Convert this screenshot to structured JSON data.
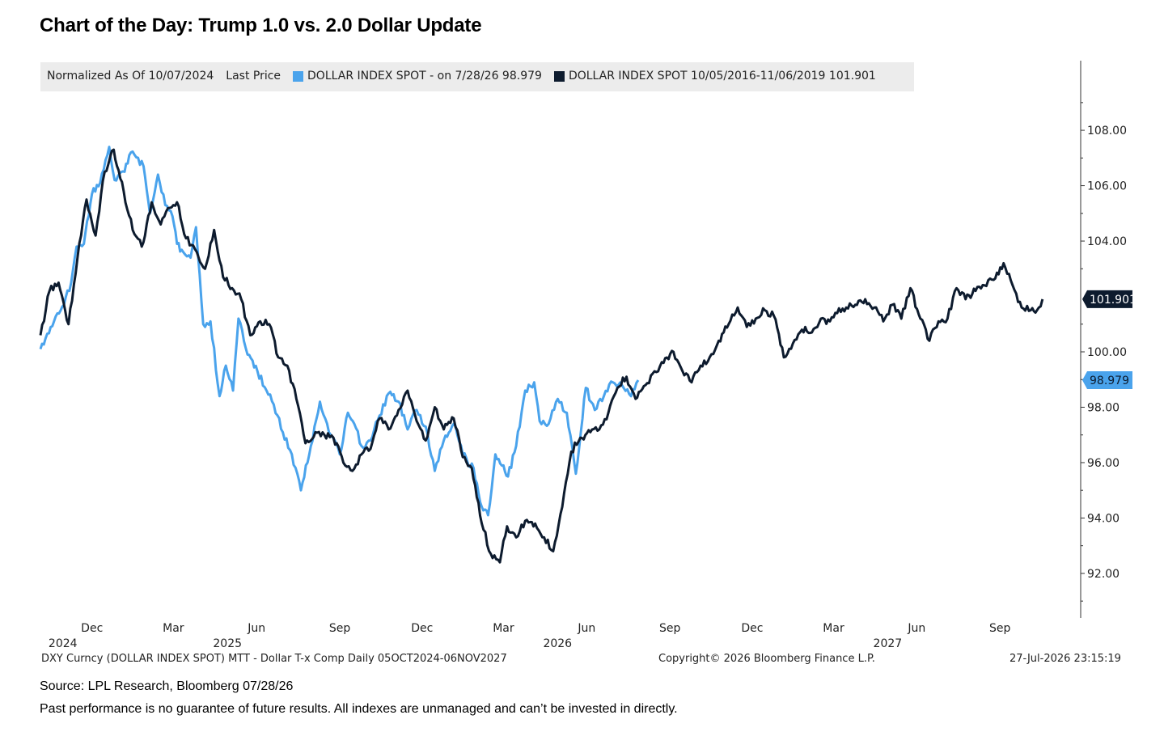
{
  "title": "Chart of the Day: Trump 1.0 vs. 2.0 Dollar Update",
  "legend": {
    "normalized": "Normalized As Of 10/07/2024",
    "last_price": "Last Price",
    "series1": "DOLLAR INDEX SPOT -  on 7/28/26 98.979",
    "series2": "DOLLAR INDEX SPOT 10/05/2016-11/06/2019 101.901"
  },
  "ticker_line": "DXY Curncy (DOLLAR INDEX SPOT) MTT - Dollar T-x Comp Daily 05OCT2024-06NOV2027",
  "copyright": "Copyright© 2026 Bloomberg Finance L.P.",
  "timestamp": "27-Jul-2026 23:15:19",
  "source": "Source: LPL Research, Bloomberg 07/28/26",
  "disclaimer": "Past performance is no guarantee of future results. All indexes are unmanaged and can’t be invested in directly.",
  "colors": {
    "series1": "#4aa3ec",
    "series2": "#0d1b2e",
    "axis": "#333333"
  },
  "chart_data": {
    "type": "line",
    "ylim": [
      90.8,
      109.2
    ],
    "y_ticks": [
      "108.00",
      "106.00",
      "104.00",
      "100.00",
      "98.00",
      "96.00",
      "94.00",
      "92.00"
    ],
    "x_start": "2024-10-05",
    "x_end": "2027-11-06",
    "x_ticks": [
      {
        "month": "Dec",
        "year": "2024",
        "date": "2024-12-01"
      },
      {
        "month": "Mar",
        "year": "",
        "date": "2025-03-01"
      },
      {
        "month": "Jun",
        "year": "2025",
        "date": "2025-06-01"
      },
      {
        "month": "Sep",
        "year": "",
        "date": "2025-09-01"
      },
      {
        "month": "Dec",
        "year": "",
        "date": "2025-12-01"
      },
      {
        "month": "Mar",
        "year": "",
        "date": "2026-03-01"
      },
      {
        "month": "Jun",
        "year": "2026",
        "date": "2026-06-01"
      },
      {
        "month": "Sep",
        "year": "",
        "date": "2026-09-01"
      },
      {
        "month": "Dec",
        "year": "",
        "date": "2026-12-01"
      },
      {
        "month": "Mar",
        "year": "",
        "date": "2027-03-01"
      },
      {
        "month": "Jun",
        "year": "2027",
        "date": "2027-06-01"
      },
      {
        "month": "Sep",
        "year": "",
        "date": "2027-09-01"
      }
    ],
    "series": [
      {
        "name": "DOLLAR INDEX SPOT -  on 7/28/26 98.979",
        "last_label": "98.979",
        "x": [
          "2024-10-05",
          "2024-10-20",
          "2024-10-31",
          "2024-11-08",
          "2024-11-14",
          "2024-11-22",
          "2024-12-01",
          "2024-12-10",
          "2024-12-20",
          "2024-12-26",
          "2025-01-06",
          "2025-01-13",
          "2025-01-27",
          "2025-02-03",
          "2025-02-12",
          "2025-02-20",
          "2025-02-28",
          "2025-03-05",
          "2025-03-12",
          "2025-03-20",
          "2025-03-26",
          "2025-04-03",
          "2025-04-11",
          "2025-04-21",
          "2025-04-28",
          "2025-05-06",
          "2025-05-12",
          "2025-05-22",
          "2025-06-02",
          "2025-06-12",
          "2025-06-20",
          "2025-06-30",
          "2025-07-10",
          "2025-07-20",
          "2025-07-31",
          "2025-08-10",
          "2025-08-20",
          "2025-09-01",
          "2025-09-10",
          "2025-09-17",
          "2025-09-25",
          "2025-10-05",
          "2025-10-15",
          "2025-10-25",
          "2025-11-05",
          "2025-11-15",
          "2025-11-25",
          "2025-12-05",
          "2025-12-15",
          "2025-12-25",
          "2026-01-05",
          "2026-01-15",
          "2026-01-27",
          "2026-02-05",
          "2026-02-12",
          "2026-02-20",
          "2026-03-01",
          "2026-03-06",
          "2026-03-15",
          "2026-03-25",
          "2026-04-04",
          "2026-04-10",
          "2026-04-20",
          "2026-04-30",
          "2026-05-10",
          "2026-05-20",
          "2026-05-31",
          "2026-06-10",
          "2026-06-20",
          "2026-06-30",
          "2026-07-10",
          "2026-07-20",
          "2026-07-28"
        ],
        "values": [
          100.1,
          101.1,
          101.7,
          102.5,
          103.8,
          103.9,
          105.7,
          106.1,
          107.4,
          106.2,
          106.5,
          107.2,
          106.7,
          105.0,
          106.4,
          105.3,
          104.9,
          103.9,
          103.6,
          103.4,
          104.5,
          101.0,
          101.1,
          98.4,
          99.5,
          98.6,
          101.2,
          99.9,
          99.3,
          98.6,
          98.1,
          97.1,
          96.3,
          95.0,
          96.6,
          98.2,
          97.1,
          96.3,
          97.8,
          97.4,
          96.6,
          96.8,
          97.7,
          98.5,
          98.2,
          97.2,
          97.9,
          97.3,
          95.7,
          96.8,
          97.4,
          96.3,
          95.8,
          94.4,
          94.1,
          96.3,
          95.9,
          95.5,
          96.6,
          98.6,
          98.9,
          97.5,
          97.4,
          98.3,
          97.8,
          95.6,
          98.7,
          97.9,
          98.4,
          98.9,
          98.8,
          98.4,
          98.979
        ]
      },
      {
        "name": "DOLLAR INDEX SPOT 10/05/2016-11/06/2019 101.901",
        "last_label": "101.901",
        "x": [
          "2024-10-05",
          "2024-10-15",
          "2024-10-25",
          "2024-11-05",
          "2024-11-15",
          "2024-11-25",
          "2024-12-05",
          "2024-12-15",
          "2024-12-25",
          "2025-01-05",
          "2025-01-15",
          "2025-01-25",
          "2025-02-05",
          "2025-02-15",
          "2025-02-25",
          "2025-03-05",
          "2025-03-15",
          "2025-03-25",
          "2025-04-05",
          "2025-04-15",
          "2025-04-25",
          "2025-05-05",
          "2025-05-15",
          "2025-05-25",
          "2025-06-05",
          "2025-06-15",
          "2025-06-25",
          "2025-07-05",
          "2025-07-15",
          "2025-07-25",
          "2025-08-05",
          "2025-08-15",
          "2025-08-25",
          "2025-09-05",
          "2025-09-15",
          "2025-09-25",
          "2025-10-05",
          "2025-10-15",
          "2025-10-25",
          "2025-11-05",
          "2025-11-15",
          "2025-11-25",
          "2025-12-05",
          "2025-12-15",
          "2025-12-25",
          "2026-01-05",
          "2026-01-15",
          "2026-01-25",
          "2026-02-05",
          "2026-02-15",
          "2026-02-25",
          "2026-03-05",
          "2026-03-15",
          "2026-03-25",
          "2026-04-05",
          "2026-04-15",
          "2026-04-25",
          "2026-05-05",
          "2026-05-15",
          "2026-05-25",
          "2026-06-05",
          "2026-06-15",
          "2026-06-25",
          "2026-07-05",
          "2026-07-15",
          "2026-07-25",
          "2026-08-05",
          "2026-08-15",
          "2026-08-25",
          "2026-09-05",
          "2026-09-15",
          "2026-09-25",
          "2026-10-05",
          "2026-10-15",
          "2026-10-25",
          "2026-11-05",
          "2026-11-15",
          "2026-11-25",
          "2026-12-05",
          "2026-12-15",
          "2026-12-25",
          "2027-01-05",
          "2027-01-15",
          "2027-01-25",
          "2027-02-05",
          "2027-02-15",
          "2027-02-25",
          "2027-03-05",
          "2027-03-15",
          "2027-03-25",
          "2027-04-05",
          "2027-04-15",
          "2027-04-25",
          "2027-05-05",
          "2027-05-15",
          "2027-05-25",
          "2027-06-05",
          "2027-06-15",
          "2027-06-25",
          "2027-07-05",
          "2027-07-15",
          "2027-07-25",
          "2027-08-05",
          "2027-08-15",
          "2027-08-25",
          "2027-09-05",
          "2027-09-15",
          "2027-09-25",
          "2027-10-05",
          "2027-10-12",
          "2027-10-18"
        ],
        "values": [
          100.6,
          102.2,
          102.5,
          101.0,
          103.4,
          105.5,
          104.2,
          106.5,
          107.3,
          105.8,
          104.4,
          103.8,
          105.4,
          104.6,
          105.2,
          105.4,
          104.1,
          103.7,
          103.0,
          104.4,
          102.7,
          102.3,
          101.9,
          100.6,
          101.1,
          101.0,
          99.8,
          99.5,
          98.3,
          96.7,
          97.1,
          97.0,
          96.9,
          96.0,
          95.7,
          96.3,
          96.5,
          97.6,
          97.2,
          97.9,
          98.6,
          97.5,
          96.8,
          98.0,
          97.2,
          97.6,
          96.2,
          95.8,
          93.8,
          92.7,
          92.4,
          93.7,
          93.3,
          93.9,
          93.8,
          93.3,
          92.8,
          94.4,
          96.4,
          96.9,
          97.1,
          97.2,
          97.8,
          98.7,
          99.1,
          98.3,
          98.8,
          99.3,
          99.6,
          100.0,
          99.3,
          98.9,
          99.5,
          99.8,
          100.4,
          101.0,
          101.6,
          100.9,
          101.2,
          101.5,
          101.3,
          99.8,
          100.3,
          100.8,
          100.7,
          101.2,
          101.1,
          101.4,
          101.6,
          101.7,
          101.9,
          101.6,
          101.1,
          101.7,
          101.2,
          102.3,
          101.2,
          100.4,
          101.1,
          101.2,
          102.3,
          101.9,
          102.2,
          102.4,
          102.6,
          103.2,
          102.4,
          101.6,
          101.5,
          101.5,
          101.901
        ]
      }
    ]
  }
}
